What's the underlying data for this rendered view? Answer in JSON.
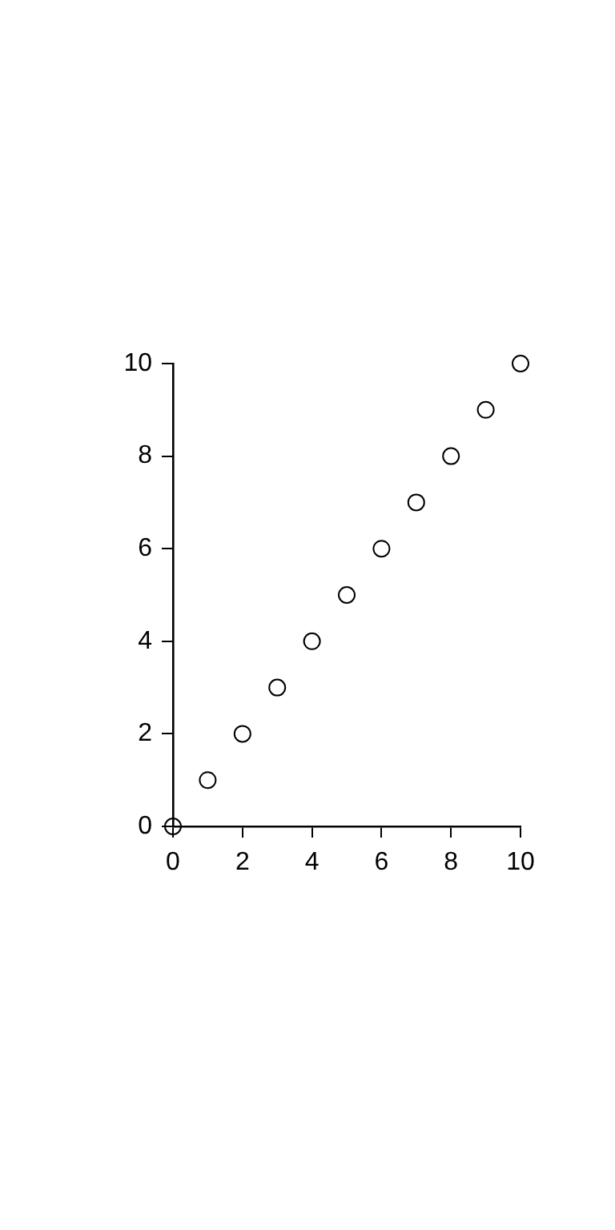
{
  "chart_data": {
    "type": "scatter",
    "x": [
      0,
      1,
      2,
      3,
      4,
      5,
      6,
      7,
      8,
      9,
      10
    ],
    "series": [
      {
        "color": "#000000",
        "values": [
          0,
          1,
          2,
          3,
          4,
          5,
          6,
          7,
          8,
          9,
          10
        ]
      }
    ],
    "xlim": [
      0,
      10
    ],
    "xticks": [
      0,
      2,
      4,
      6,
      8,
      10
    ],
    "ylim": [
      0,
      10
    ],
    "yticks": [
      0,
      2,
      4,
      6,
      8,
      10
    ],
    "marker": "circle",
    "grid": false,
    "legend": false
  }
}
